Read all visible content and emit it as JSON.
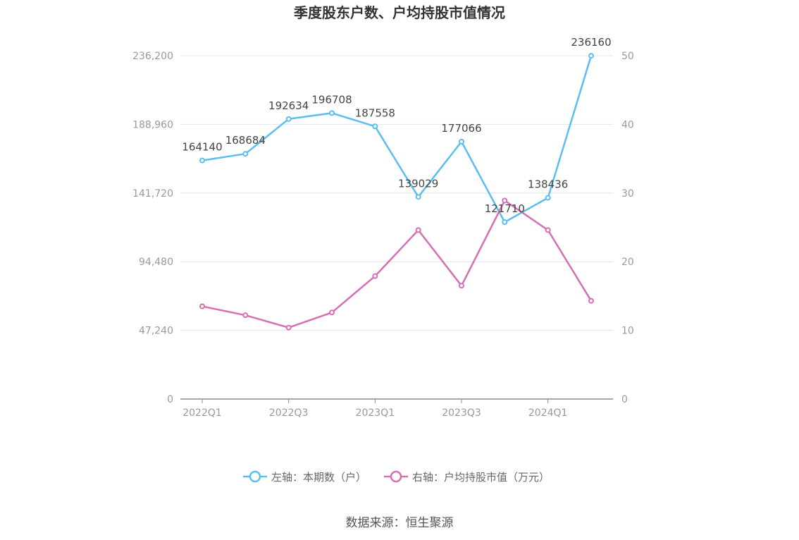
{
  "chart_data": {
    "type": "line",
    "title": "季度股东户数、户均持股市值情况",
    "categories": [
      "2022Q1",
      "2022Q2",
      "2022Q3",
      "2022Q4",
      "2023Q1",
      "2023Q2",
      "2023Q3",
      "2023Q4",
      "2024Q1",
      "2024Q2"
    ],
    "x_tick_labels": [
      "2022Q1",
      "2022Q3",
      "2023Q1",
      "2023Q3",
      "2024Q1"
    ],
    "left_axis": {
      "ticks": [
        "0",
        "47,240",
        "94,480",
        "141,720",
        "188,960",
        "236,200"
      ],
      "min": 0,
      "max": 236200
    },
    "right_axis": {
      "ticks": [
        "0",
        "10",
        "20",
        "30",
        "40",
        "50"
      ],
      "min": 0,
      "max": 50
    },
    "series": [
      {
        "name": "左轴：本期数（户）",
        "axis": "left",
        "color": "#5bbdf0",
        "values": [
          164140,
          168684,
          192634,
          196708,
          187558,
          139029,
          177066,
          121710,
          138436,
          236160
        ],
        "labels": [
          "164140",
          "168684",
          "192634",
          "196708",
          "187558",
          "139029",
          "177066",
          "121710",
          "138436",
          "236160"
        ]
      },
      {
        "name": "右轴：户均持股市值（万元）",
        "axis": "right",
        "color": "#d66fb3",
        "values": [
          13.5,
          12.2,
          10.4,
          12.6,
          17.9,
          24.6,
          16.5,
          28.9,
          24.6,
          14.3
        ]
      }
    ],
    "legend_position": "bottom",
    "grid": true
  },
  "source": "数据来源：恒生聚源"
}
